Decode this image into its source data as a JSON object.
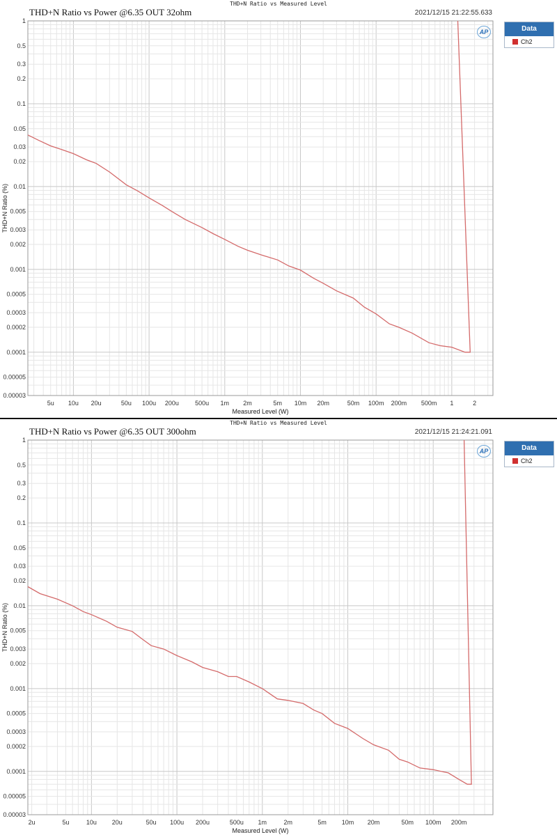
{
  "panels": [
    {
      "header": "THD+N Ratio vs Measured Level",
      "title": "THD+N Ratio vs Power @6.35 OUT 32ohm",
      "timestamp": "2021/12/15 21:22:55.633",
      "legend": {
        "title": "Data",
        "entries": [
          "Ch2"
        ]
      },
      "logo": "AP"
    },
    {
      "header": "THD+N Ratio vs Measured Level",
      "title": "THD+N Ratio vs Power @6.35 OUT 300ohm",
      "timestamp": "2021/12/15 21:24:21.091",
      "legend": {
        "title": "Data",
        "entries": [
          "Ch2"
        ]
      },
      "logo": "AP"
    }
  ],
  "colors": {
    "trace": "#d46a6a",
    "legend_swatch": "#d03030",
    "legend_header": "#2f6fb0",
    "grid": "#d9d9d9"
  },
  "chart_data": [
    {
      "type": "line",
      "title": "THD+N Ratio vs Power @6.35 OUT 32ohm",
      "xlabel": "Measured Level (W)",
      "ylabel": "THD+N Ratio (%)",
      "x_scale": "log",
      "y_scale": "log",
      "xlim": [
        2.5e-06,
        3.5
      ],
      "ylim": [
        3e-05,
        1
      ],
      "xticks": [
        {
          "v": 5e-06,
          "label": "5u"
        },
        {
          "v": 1e-05,
          "label": "10u"
        },
        {
          "v": 2e-05,
          "label": "20u"
        },
        {
          "v": 5e-05,
          "label": "50u"
        },
        {
          "v": 0.0001,
          "label": "100u"
        },
        {
          "v": 0.0002,
          "label": "200u"
        },
        {
          "v": 0.0005,
          "label": "500u"
        },
        {
          "v": 0.001,
          "label": "1m"
        },
        {
          "v": 0.002,
          "label": "2m"
        },
        {
          "v": 0.005,
          "label": "5m"
        },
        {
          "v": 0.01,
          "label": "10m"
        },
        {
          "v": 0.02,
          "label": "20m"
        },
        {
          "v": 0.05,
          "label": "50m"
        },
        {
          "v": 0.1,
          "label": "100m"
        },
        {
          "v": 0.2,
          "label": "200m"
        },
        {
          "v": 0.5,
          "label": "500m"
        },
        {
          "v": 1,
          "label": "1"
        },
        {
          "v": 2,
          "label": "2"
        }
      ],
      "yticks": [
        {
          "v": 1,
          "label": "1"
        },
        {
          "v": 0.5,
          "label": "0.5"
        },
        {
          "v": 0.3,
          "label": "0.3"
        },
        {
          "v": 0.2,
          "label": "0.2"
        },
        {
          "v": 0.1,
          "label": "0.1"
        },
        {
          "v": 0.05,
          "label": "0.05"
        },
        {
          "v": 0.03,
          "label": "0.03"
        },
        {
          "v": 0.02,
          "label": "0.02"
        },
        {
          "v": 0.01,
          "label": "0.01"
        },
        {
          "v": 0.005,
          "label": "0.005"
        },
        {
          "v": 0.003,
          "label": "0.003"
        },
        {
          "v": 0.002,
          "label": "0.002"
        },
        {
          "v": 0.001,
          "label": "0.001"
        },
        {
          "v": 0.0005,
          "label": "0.0005"
        },
        {
          "v": 0.0003,
          "label": "0.0003"
        },
        {
          "v": 0.0002,
          "label": "0.0002"
        },
        {
          "v": 0.0001,
          "label": "0.0001"
        },
        {
          "v": 5e-05,
          "label": "0.00005"
        },
        {
          "v": 3e-05,
          "label": "0.00003"
        }
      ],
      "grid": true,
      "legend_position": "right",
      "series": [
        {
          "name": "Ch2",
          "points": [
            [
              2.5e-06,
              0.042
            ],
            [
              3.5e-06,
              0.036
            ],
            [
              5e-06,
              0.031
            ],
            [
              7e-06,
              0.028
            ],
            [
              1e-05,
              0.025
            ],
            [
              1.5e-05,
              0.021
            ],
            [
              2e-05,
              0.019
            ],
            [
              3e-05,
              0.015
            ],
            [
              5e-05,
              0.0105
            ],
            [
              7e-05,
              0.0089
            ],
            [
              0.0001,
              0.0073
            ],
            [
              0.00015,
              0.0059
            ],
            [
              0.0002,
              0.005
            ],
            [
              0.0003,
              0.004
            ],
            [
              0.0005,
              0.0032
            ],
            [
              0.0007,
              0.0027
            ],
            [
              0.001,
              0.0023
            ],
            [
              0.0015,
              0.0019
            ],
            [
              0.002,
              0.0017
            ],
            [
              0.003,
              0.0015
            ],
            [
              0.005,
              0.0013
            ],
            [
              0.007,
              0.0011
            ],
            [
              0.01,
              0.00098
            ],
            [
              0.015,
              0.00078
            ],
            [
              0.02,
              0.00068
            ],
            [
              0.03,
              0.00055
            ],
            [
              0.05,
              0.00045
            ],
            [
              0.07,
              0.00035
            ],
            [
              0.1,
              0.00029
            ],
            [
              0.15,
              0.00022
            ],
            [
              0.2,
              0.0002
            ],
            [
              0.3,
              0.00017
            ],
            [
              0.5,
              0.00013
            ],
            [
              0.7,
              0.00012
            ],
            [
              1.0,
              0.000115
            ],
            [
              1.5,
              0.0001
            ],
            [
              1.75,
              0.0001
            ],
            [
              1.2,
              1.0
            ]
          ]
        }
      ]
    },
    {
      "type": "line",
      "title": "THD+N Ratio vs Power @6.35 OUT 300ohm",
      "xlabel": "Measured Level (W)",
      "ylabel": "THD+N Ratio (%)",
      "x_scale": "log",
      "y_scale": "log",
      "xlim": [
        1.8e-06,
        0.5
      ],
      "ylim": [
        3e-05,
        1
      ],
      "xticks": [
        {
          "v": 2e-06,
          "label": "2u"
        },
        {
          "v": 5e-06,
          "label": "5u"
        },
        {
          "v": 1e-05,
          "label": "10u"
        },
        {
          "v": 2e-05,
          "label": "20u"
        },
        {
          "v": 5e-05,
          "label": "50u"
        },
        {
          "v": 0.0001,
          "label": "100u"
        },
        {
          "v": 0.0002,
          "label": "200u"
        },
        {
          "v": 0.0005,
          "label": "500u"
        },
        {
          "v": 0.001,
          "label": "1m"
        },
        {
          "v": 0.002,
          "label": "2m"
        },
        {
          "v": 0.005,
          "label": "5m"
        },
        {
          "v": 0.01,
          "label": "10m"
        },
        {
          "v": 0.02,
          "label": "20m"
        },
        {
          "v": 0.05,
          "label": "50m"
        },
        {
          "v": 0.1,
          "label": "100m"
        },
        {
          "v": 0.2,
          "label": "200m"
        }
      ],
      "yticks": [
        {
          "v": 1,
          "label": "1"
        },
        {
          "v": 0.5,
          "label": "0.5"
        },
        {
          "v": 0.3,
          "label": "0.3"
        },
        {
          "v": 0.2,
          "label": "0.2"
        },
        {
          "v": 0.1,
          "label": "0.1"
        },
        {
          "v": 0.05,
          "label": "0.05"
        },
        {
          "v": 0.03,
          "label": "0.03"
        },
        {
          "v": 0.02,
          "label": "0.02"
        },
        {
          "v": 0.01,
          "label": "0.01"
        },
        {
          "v": 0.005,
          "label": "0.005"
        },
        {
          "v": 0.003,
          "label": "0.003"
        },
        {
          "v": 0.002,
          "label": "0.002"
        },
        {
          "v": 0.001,
          "label": "0.001"
        },
        {
          "v": 0.0005,
          "label": "0.0005"
        },
        {
          "v": 0.0003,
          "label": "0.0003"
        },
        {
          "v": 0.0002,
          "label": "0.0002"
        },
        {
          "v": 0.0001,
          "label": "0.0001"
        },
        {
          "v": 5e-05,
          "label": "0.00005"
        },
        {
          "v": 3e-05,
          "label": "0.00003"
        }
      ],
      "grid": true,
      "legend_position": "right",
      "series": [
        {
          "name": "Ch2",
          "points": [
            [
              1.8e-06,
              0.017
            ],
            [
              2.5e-06,
              0.014
            ],
            [
              4e-06,
              0.012
            ],
            [
              6e-06,
              0.01
            ],
            [
              8e-06,
              0.0085
            ],
            [
              1e-05,
              0.0078
            ],
            [
              1.5e-05,
              0.0065
            ],
            [
              2e-05,
              0.0055
            ],
            [
              3e-05,
              0.0049
            ],
            [
              4e-05,
              0.0039
            ],
            [
              5e-05,
              0.0033
            ],
            [
              7e-05,
              0.003
            ],
            [
              0.0001,
              0.0025
            ],
            [
              0.00015,
              0.0021
            ],
            [
              0.0002,
              0.0018
            ],
            [
              0.0003,
              0.0016
            ],
            [
              0.0004,
              0.0014
            ],
            [
              0.0005,
              0.0014
            ],
            [
              0.0007,
              0.0012
            ],
            [
              0.001,
              0.001
            ],
            [
              0.0015,
              0.00075
            ],
            [
              0.002,
              0.00072
            ],
            [
              0.003,
              0.00066
            ],
            [
              0.004,
              0.00055
            ],
            [
              0.005,
              0.0005
            ],
            [
              0.007,
              0.00038
            ],
            [
              0.01,
              0.00033
            ],
            [
              0.015,
              0.00025
            ],
            [
              0.02,
              0.00021
            ],
            [
              0.03,
              0.00018
            ],
            [
              0.04,
              0.00014
            ],
            [
              0.05,
              0.00013
            ],
            [
              0.07,
              0.00011
            ],
            [
              0.1,
              0.000105
            ],
            [
              0.15,
              9.6e-05
            ],
            [
              0.2,
              8e-05
            ],
            [
              0.25,
              7e-05
            ],
            [
              0.28,
              7e-05
            ],
            [
              0.23,
              1.0
            ]
          ]
        }
      ]
    }
  ]
}
